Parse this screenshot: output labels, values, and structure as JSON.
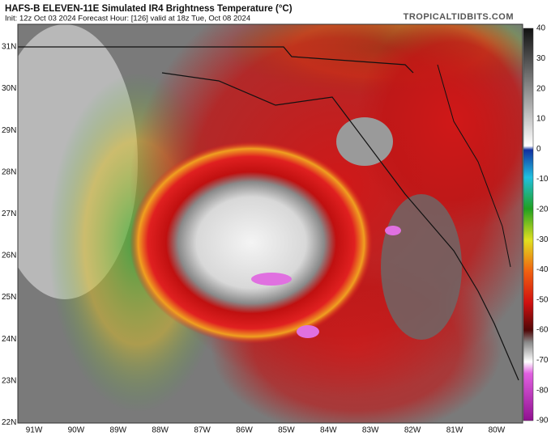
{
  "header": {
    "title": "HAFS-B ELEVEN-11E Simulated IR4 Brightness Temperature (°C)",
    "info": "Init: 12z Oct 03 2024   Forecast Hour: [126]   valid at 18z Tue, Oct 08 2024",
    "site": "TROPICALTIDBITS.COM"
  },
  "map": {
    "lat_labels": [
      "31N",
      "30N",
      "29N",
      "28N",
      "27N",
      "26N",
      "25N",
      "24N",
      "23N",
      "22N"
    ],
    "lon_labels": [
      "91W",
      "90W",
      "89W",
      "88W",
      "87W",
      "86W",
      "85W",
      "84W",
      "83W",
      "82W",
      "81W",
      "80W"
    ]
  },
  "colorbar": {
    "ticks": [
      40,
      30,
      20,
      10,
      0,
      -10,
      -20,
      -30,
      -40,
      -50,
      -60,
      -70,
      -80,
      -90
    ]
  }
}
